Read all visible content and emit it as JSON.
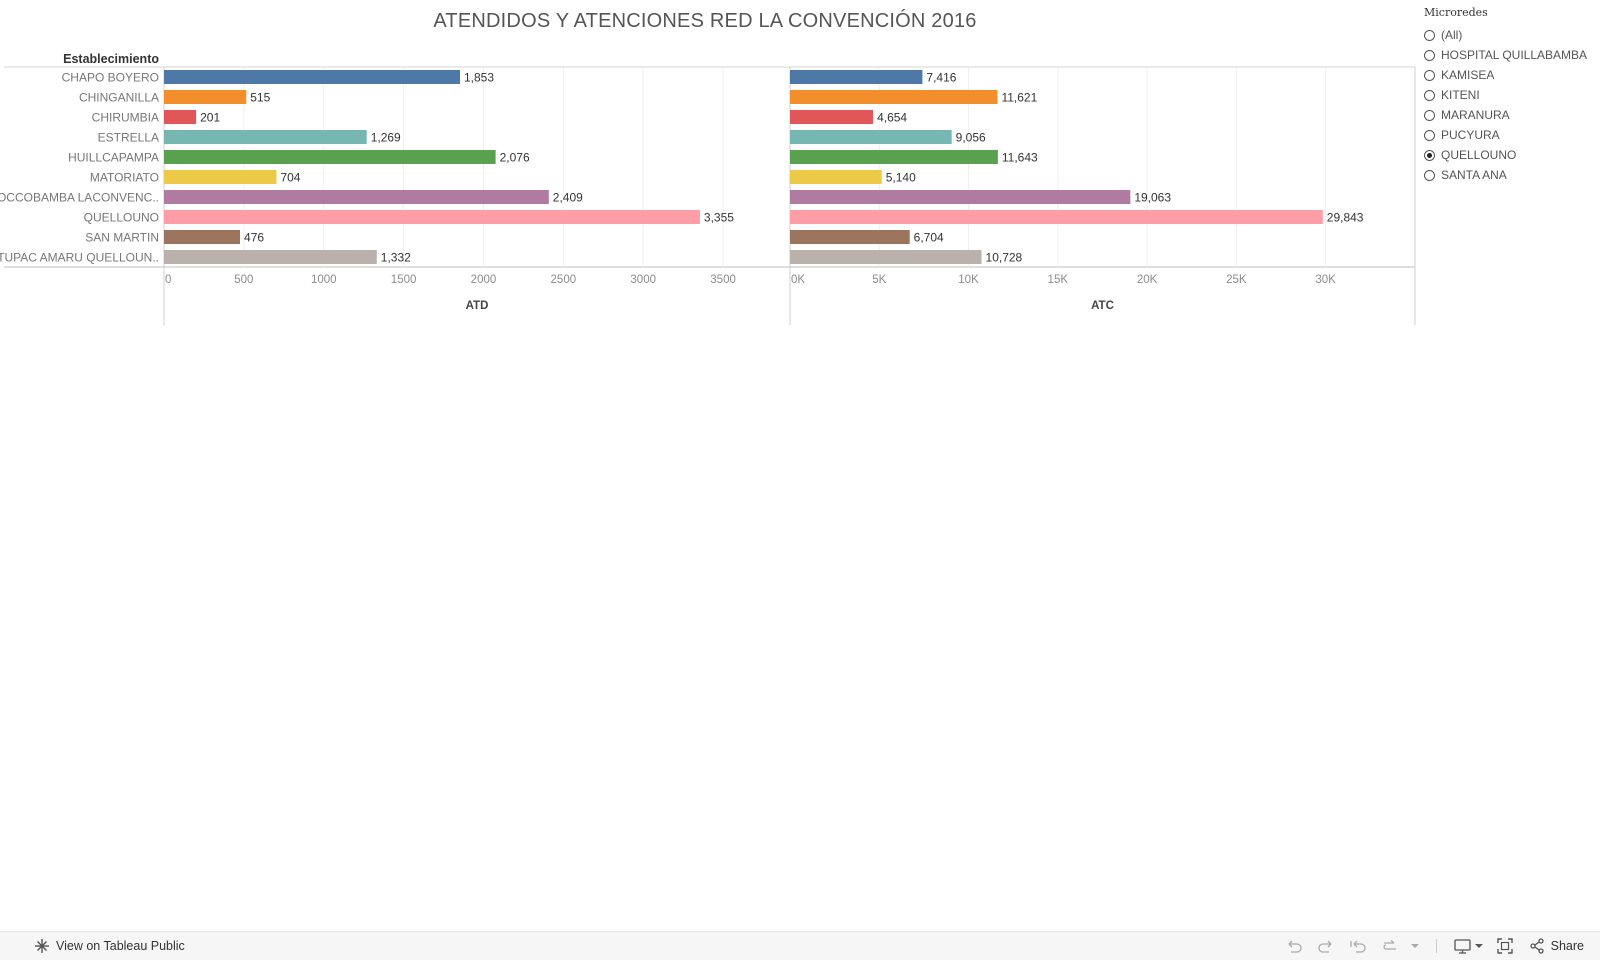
{
  "title": "ATENDIDOS Y ATENCIONES RED LA CONVENCIÓN 2016",
  "chart_data": {
    "type": "bar",
    "orientation": "horizontal",
    "title": "ATENDIDOS Y ATENCIONES RED LA CONVENCIÓN 2016",
    "row_header": "Establecimiento",
    "categories": [
      "CHAPO BOYERO",
      "CHINGANILLA",
      "CHIRUMBIA",
      "ESTRELLA",
      "HUILLCAPAMPA",
      "MATORIATO",
      "OCCOBAMBA LACONVENC..",
      "QUELLOUNO",
      "SAN MARTIN",
      "TUPAC AMARU QUELLOUN.."
    ],
    "colors": [
      "#4e79a7",
      "#f28e2b",
      "#e15759",
      "#76b7b2",
      "#59a14f",
      "#edc948",
      "#b07aa1",
      "#ff9da7",
      "#9c755f",
      "#bab0ac"
    ],
    "series": [
      {
        "name": "ATD",
        "values": [
          1853,
          515,
          201,
          1269,
          2076,
          704,
          2409,
          3355,
          476,
          1332
        ],
        "labels": [
          "1,853",
          "515",
          "201",
          "1,269",
          "2,076",
          "704",
          "2,409",
          "3,355",
          "476",
          "1,332"
        ],
        "xlim": [
          0,
          3800
        ],
        "ticks": [
          0,
          500,
          1000,
          1500,
          2000,
          2500,
          3000,
          3500
        ],
        "tick_labels": [
          "0",
          "500",
          "1000",
          "1500",
          "2000",
          "2500",
          "3000",
          "3500"
        ],
        "xlabel": "ATD"
      },
      {
        "name": "ATC",
        "values": [
          7416,
          11621,
          4654,
          9056,
          11643,
          5140,
          19063,
          29843,
          6704,
          10728
        ],
        "labels": [
          "7,416",
          "11,621",
          "4,654",
          "9,056",
          "11,643",
          "5,140",
          "19,063",
          "29,843",
          "6,704",
          "10,728"
        ],
        "xlim": [
          0,
          34000
        ],
        "ticks": [
          0,
          5000,
          10000,
          15000,
          20000,
          25000,
          30000
        ],
        "tick_labels": [
          "0K",
          "5K",
          "10K",
          "15K",
          "20K",
          "25K",
          "30K"
        ],
        "xlabel": "ATC"
      }
    ]
  },
  "legend": {
    "title": "Microredes",
    "items": [
      "(All)",
      "HOSPITAL QUILLABAMBA",
      "KAMISEA",
      "KITENI",
      "MARANURA",
      "PUCYURA",
      "QUELLOUNO",
      "SANTA ANA"
    ],
    "selected": "QUELLOUNO"
  },
  "footer": {
    "view_label": "View on Tableau Public",
    "share_label": "Share"
  }
}
